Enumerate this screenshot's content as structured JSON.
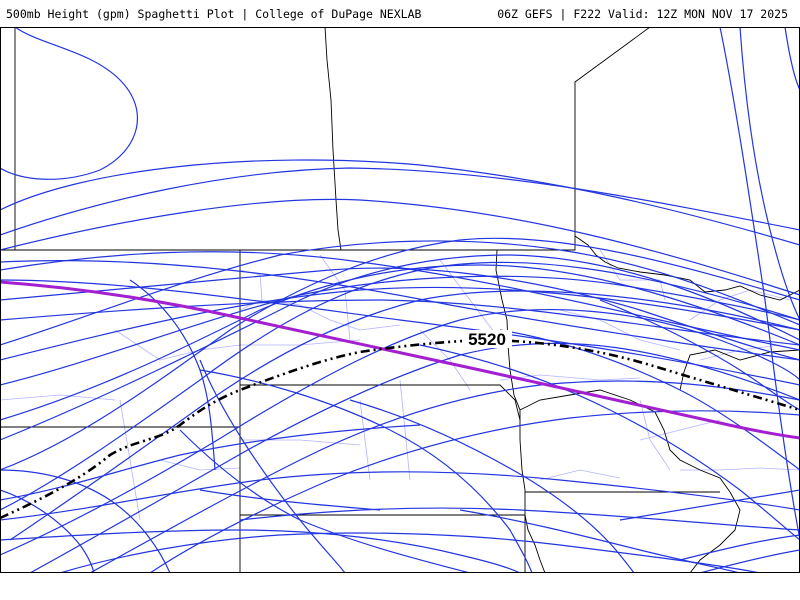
{
  "header": {
    "left_title": "500mb Height (gpm) Spaghetti Plot | College of DuPage NEXLAB",
    "right_title": "06Z GEFS | F222 Valid: 12Z MON NOV 17 2025"
  },
  "contour": {
    "label": "5520"
  },
  "colors": {
    "members": "#2336e0",
    "mean": "#a31fd0",
    "control": "#000000",
    "state_borders": "#000000",
    "county_borders": "#a9a9ff"
  }
}
